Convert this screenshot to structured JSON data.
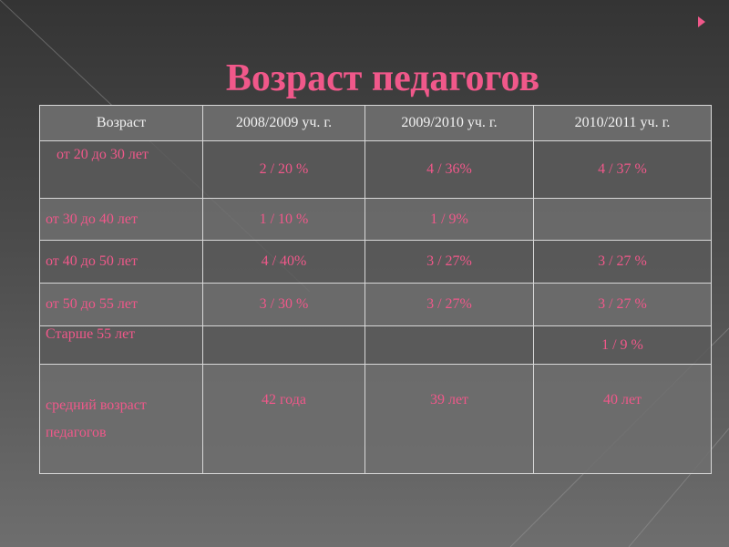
{
  "title": "Возраст педагогов",
  "table": {
    "header": [
      "Возраст",
      "2008/2009 уч. г.",
      "2009/2010 уч. г.",
      "2010/2011 уч. г."
    ],
    "rows": [
      [
        "от 20 до 30 лет",
        "2 / 20 %",
        "4 / 36%",
        "4 / 37 %"
      ],
      [
        "от 30 до 40 лет",
        "1 / 10 %",
        "1 / 9%",
        null
      ],
      [
        "от 40 до 50 лет",
        "4 / 40%",
        "3 / 27%",
        "3 / 27 %"
      ],
      [
        "от 50 до 55 лет",
        "3 / 30 %",
        "3 / 27%",
        "3 / 27 %"
      ],
      [
        "Старше 55 лет",
        null,
        null,
        "1 / 9 %"
      ],
      [
        "средний возраст педагогов",
        "42 года",
        "39 лет",
        "40 лет"
      ]
    ]
  }
}
